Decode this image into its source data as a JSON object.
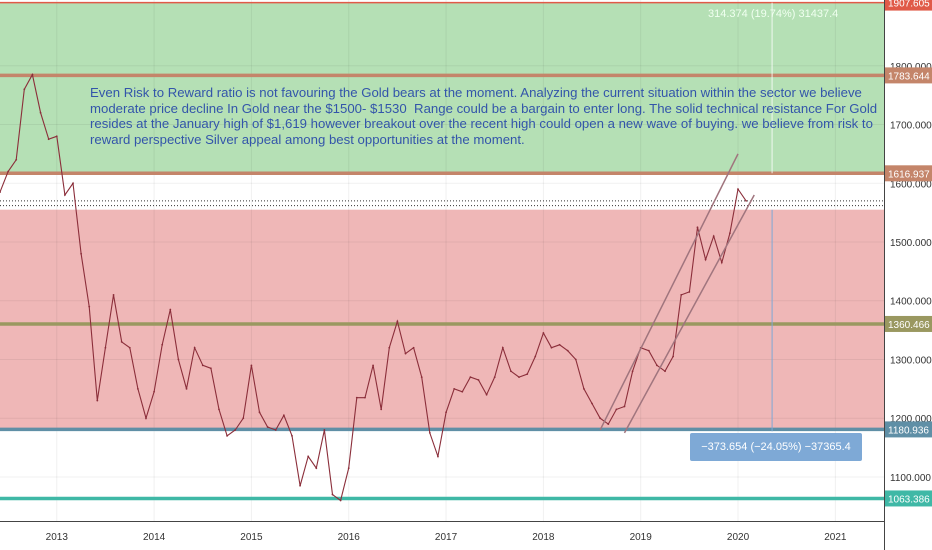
{
  "chart_data": {
    "type": "line",
    "title": "",
    "xlabel": "",
    "ylabel": "",
    "x_tick_labels": [
      "2013",
      "2014",
      "2015",
      "2016",
      "2017",
      "2018",
      "2019",
      "2020",
      "2021"
    ],
    "x_range": [
      "2012-06",
      "2021-07"
    ],
    "ylim": [
      1025,
      1912
    ],
    "y_tick_labels": [
      1100,
      1200,
      1300,
      1400,
      1500,
      1600,
      1700,
      1800
    ],
    "y_tick_text": [
      "1100.000",
      "1200.000",
      "1300.000",
      "1400.000",
      "1500.000",
      "1600.000",
      "1700.000",
      "1800.000"
    ],
    "price_series": {
      "name": "",
      "color": "#8b2e3a",
      "points": [
        [
          "2012-06",
          1585
        ],
        [
          "2012-07",
          1620
        ],
        [
          "2012-08",
          1640
        ],
        [
          "2012-09",
          1760
        ],
        [
          "2012-10",
          1785
        ],
        [
          "2012-11",
          1720
        ],
        [
          "2012-12",
          1675
        ],
        [
          "2013-01",
          1680
        ],
        [
          "2013-02",
          1580
        ],
        [
          "2013-03",
          1600
        ],
        [
          "2013-04",
          1480
        ],
        [
          "2013-05",
          1390
        ],
        [
          "2013-06",
          1230
        ],
        [
          "2013-07",
          1320
        ],
        [
          "2013-08",
          1410
        ],
        [
          "2013-09",
          1330
        ],
        [
          "2013-10",
          1320
        ],
        [
          "2013-11",
          1250
        ],
        [
          "2013-12",
          1200
        ],
        [
          "2014-01",
          1245
        ],
        [
          "2014-02",
          1325
        ],
        [
          "2014-03",
          1385
        ],
        [
          "2014-04",
          1300
        ],
        [
          "2014-05",
          1250
        ],
        [
          "2014-06",
          1320
        ],
        [
          "2014-07",
          1290
        ],
        [
          "2014-08",
          1285
        ],
        [
          "2014-09",
          1215
        ],
        [
          "2014-10",
          1170
        ],
        [
          "2014-11",
          1180
        ],
        [
          "2014-12",
          1200
        ],
        [
          "2015-01",
          1290
        ],
        [
          "2015-02",
          1210
        ],
        [
          "2015-03",
          1185
        ],
        [
          "2015-04",
          1180
        ],
        [
          "2015-05",
          1205
        ],
        [
          "2015-06",
          1170
        ],
        [
          "2015-07",
          1085
        ],
        [
          "2015-08",
          1135
        ],
        [
          "2015-09",
          1115
        ],
        [
          "2015-10",
          1180
        ],
        [
          "2015-11",
          1070
        ],
        [
          "2015-12",
          1060
        ],
        [
          "2016-01",
          1115
        ],
        [
          "2016-02",
          1235
        ],
        [
          "2016-03",
          1235
        ],
        [
          "2016-04",
          1290
        ],
        [
          "2016-05",
          1215
        ],
        [
          "2016-06",
          1320
        ],
        [
          "2016-07",
          1365
        ],
        [
          "2016-08",
          1310
        ],
        [
          "2016-09",
          1320
        ],
        [
          "2016-10",
          1270
        ],
        [
          "2016-11",
          1175
        ],
        [
          "2016-12",
          1135
        ],
        [
          "2017-01",
          1210
        ],
        [
          "2017-02",
          1250
        ],
        [
          "2017-03",
          1245
        ],
        [
          "2017-04",
          1270
        ],
        [
          "2017-05",
          1265
        ],
        [
          "2017-06",
          1240
        ],
        [
          "2017-07",
          1270
        ],
        [
          "2017-08",
          1320
        ],
        [
          "2017-09",
          1280
        ],
        [
          "2017-10",
          1270
        ],
        [
          "2017-11",
          1275
        ],
        [
          "2017-12",
          1305
        ],
        [
          "2018-01",
          1345
        ],
        [
          "2018-02",
          1320
        ],
        [
          "2018-03",
          1325
        ],
        [
          "2018-04",
          1315
        ],
        [
          "2018-05",
          1300
        ],
        [
          "2018-06",
          1250
        ],
        [
          "2018-07",
          1225
        ],
        [
          "2018-08",
          1200
        ],
        [
          "2018-09",
          1190
        ],
        [
          "2018-10",
          1215
        ],
        [
          "2018-11",
          1220
        ],
        [
          "2018-12",
          1280
        ],
        [
          "2019-01",
          1320
        ],
        [
          "2019-02",
          1315
        ],
        [
          "2019-03",
          1290
        ],
        [
          "2019-04",
          1280
        ],
        [
          "2019-05",
          1305
        ],
        [
          "2019-06",
          1410
        ],
        [
          "2019-07",
          1415
        ],
        [
          "2019-08",
          1525
        ],
        [
          "2019-09",
          1470
        ],
        [
          "2019-10",
          1510
        ],
        [
          "2019-11",
          1465
        ],
        [
          "2019-12",
          1515
        ],
        [
          "2020-01",
          1590
        ],
        [
          "2020-02",
          1570
        ]
      ]
    },
    "zones": [
      {
        "name": "reward",
        "from": 1616.937,
        "to": 1907.605,
        "color": "#a8dba8"
      },
      {
        "name": "risk",
        "from": 1180.936,
        "to": 1555,
        "color": "#ecaaaa"
      }
    ],
    "horizontal_levels": [
      {
        "value": 1907.605,
        "label": "1907.605",
        "color": "#e05a48"
      },
      {
        "value": 1783.644,
        "label": "1783.644",
        "color": "#c4856a"
      },
      {
        "value": 1616.937,
        "label": "1616.937",
        "color": "#c4856a"
      },
      {
        "value": 1360.466,
        "label": "1360.466",
        "color": "#9a9860"
      },
      {
        "value": 1180.936,
        "label": "1180.936",
        "color": "#5f8fa6"
      },
      {
        "value": 1063.386,
        "label": "1063.386",
        "color": "#3fb8a6"
      }
    ],
    "channel_lines": [
      [
        [
          "2018-08",
          1180
        ],
        [
          "2020-01",
          1650
        ]
      ],
      [
        [
          "2018-11",
          1175
        ],
        [
          "2020-03",
          1580
        ]
      ]
    ],
    "measurements": {
      "top": "314.374 (19.74%) 31437.4",
      "bottom": "−373.654 (−24.05%) −37365.4"
    }
  },
  "annotation": {
    "text": "Even Risk to Reward ratio is not favouring the Gold bears at the moment. Analyzing the current situation within the sector we believe moderate price decline In Gold near the $1500- $1530  Range could be a bargain to enter long. The solid technical resistance For Gold resides at the January high of $1,619 however breakout over the recent high could open a new wave of buying. we believe from risk to reward perspective Silver appeal among best opportunities at the moment."
  },
  "colors": {
    "level_label_text": "#ffffff",
    "axis_text": "#333333",
    "channel": "#a0757e"
  }
}
